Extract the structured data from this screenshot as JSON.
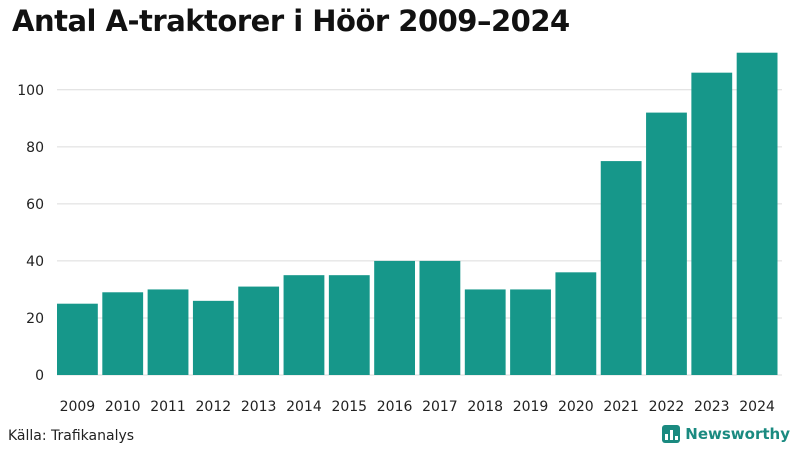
{
  "title": "Antal A-traktorer i Höör 2009–2024",
  "source": "Källa: Trafikanalys",
  "brand": {
    "name": "Newsworthy",
    "icon": "bar-chart-logo-icon",
    "color": "#1a8a80"
  },
  "chart_data": {
    "type": "bar",
    "title": "Antal A-traktorer i Höör 2009–2024",
    "xlabel": "",
    "ylabel": "",
    "categories": [
      "2009",
      "2010",
      "2011",
      "2012",
      "2013",
      "2014",
      "2015",
      "2016",
      "2017",
      "2018",
      "2019",
      "2020",
      "2021",
      "2022",
      "2023",
      "2024"
    ],
    "values": [
      25,
      29,
      30,
      26,
      31,
      35,
      35,
      40,
      40,
      30,
      30,
      36,
      75,
      92,
      106,
      113
    ],
    "ylim": [
      0,
      115
    ],
    "yticks": [
      0,
      20,
      40,
      60,
      80,
      100
    ],
    "grid": true,
    "bar_color": "#16978a"
  }
}
